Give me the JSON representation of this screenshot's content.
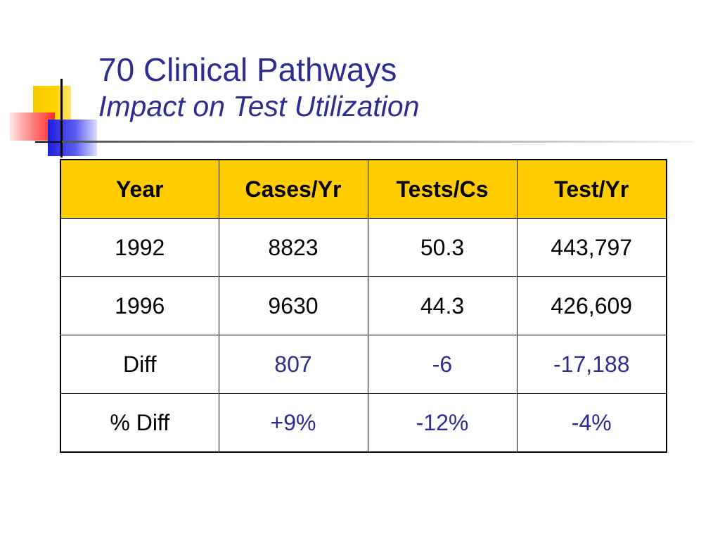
{
  "title": {
    "line1": "70 Clinical Pathways",
    "line2": "Impact on Test Utilization"
  },
  "table": {
    "headers": [
      "Year",
      "Cases/Yr",
      "Tests/Cs",
      "Test/Yr"
    ],
    "rows": [
      [
        "1992",
        "8823",
        "50.3",
        "443,797"
      ],
      [
        "1996",
        "9630",
        "44.3",
        "426,609"
      ],
      [
        "Diff",
        "807",
        "-6",
        "-17,188"
      ],
      [
        "% Diff",
        "+9%",
        "-12%",
        "-4%"
      ]
    ]
  },
  "colors": {
    "title": "#2d2d91",
    "header_fill": "#ffcc00",
    "highlight_text": "#2d2d91"
  }
}
